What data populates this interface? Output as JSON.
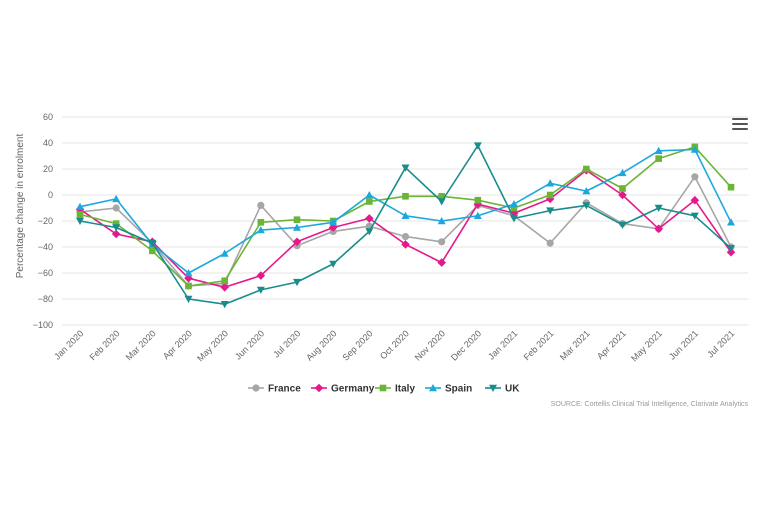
{
  "chart_data": {
    "type": "line",
    "ylabel": "Percentage change in enrolment",
    "xlabel": "",
    "ylim": [
      -100,
      60
    ],
    "yticks": [
      -100,
      -80,
      -60,
      -40,
      -20,
      0,
      20,
      40,
      60
    ],
    "ytick_labels": [
      "−100",
      "−80",
      "−60",
      "−40",
      "−20",
      "0",
      "20",
      "40",
      "60"
    ],
    "categories": [
      "Jan 2020",
      "Feb 2020",
      "Mar 2020",
      "Apr 2020",
      "May 2020",
      "Jun 2020",
      "Jul 2020",
      "Aug 2020",
      "Sep 2020",
      "Oct 2020",
      "Nov 2020",
      "Dec 2020",
      "Jan 2021",
      "Feb 2021",
      "Mar 2021",
      "Apr 2021",
      "May 2021",
      "Jun 2021",
      "Jul 2021"
    ],
    "legend_position": "bottom-center",
    "series": [
      {
        "name": "France",
        "color": "#a6a6a6",
        "marker": "circle",
        "values": [
          -13,
          -10,
          -37,
          -70,
          -68,
          -8,
          -39,
          -28,
          -24,
          -32,
          -36,
          -8,
          -16,
          -37,
          -6,
          -22,
          -26,
          14,
          -40
        ]
      },
      {
        "name": "Germany",
        "color": "#e6198c",
        "marker": "diamond",
        "values": [
          -11,
          -30,
          -36,
          -64,
          -71,
          -62,
          -36,
          -25,
          -18,
          -38,
          -52,
          -7,
          -14,
          -3,
          19,
          0,
          -26,
          -4,
          -44
        ]
      },
      {
        "name": "Italy",
        "color": "#6ab536",
        "marker": "square",
        "values": [
          -15,
          -22,
          -43,
          -70,
          -66,
          -21,
          -19,
          -20,
          -5,
          -1,
          -1,
          -4,
          -10,
          0,
          20,
          5,
          28,
          37,
          6
        ]
      },
      {
        "name": "Spain",
        "color": "#1ca8dd",
        "marker": "triangle-up",
        "values": [
          -9,
          -3,
          -38,
          -60,
          -45,
          -27,
          -25,
          -21,
          0,
          -16,
          -20,
          -16,
          -7,
          9,
          3,
          17,
          34,
          35,
          -21
        ]
      },
      {
        "name": "UK",
        "color": "#1b8c8c",
        "marker": "triangle-down",
        "values": [
          -20,
          -25,
          -37,
          -80,
          -84,
          -73,
          -67,
          -53,
          -28,
          21,
          -5,
          38,
          -18,
          -12,
          -8,
          -23,
          -10,
          -16,
          -41
        ]
      }
    ]
  },
  "source_text": "SOURCE: Cortellis Clinical Trial Intelligence, Clarivate Analytics",
  "menu": {
    "icon": "hamburger-menu-icon"
  }
}
